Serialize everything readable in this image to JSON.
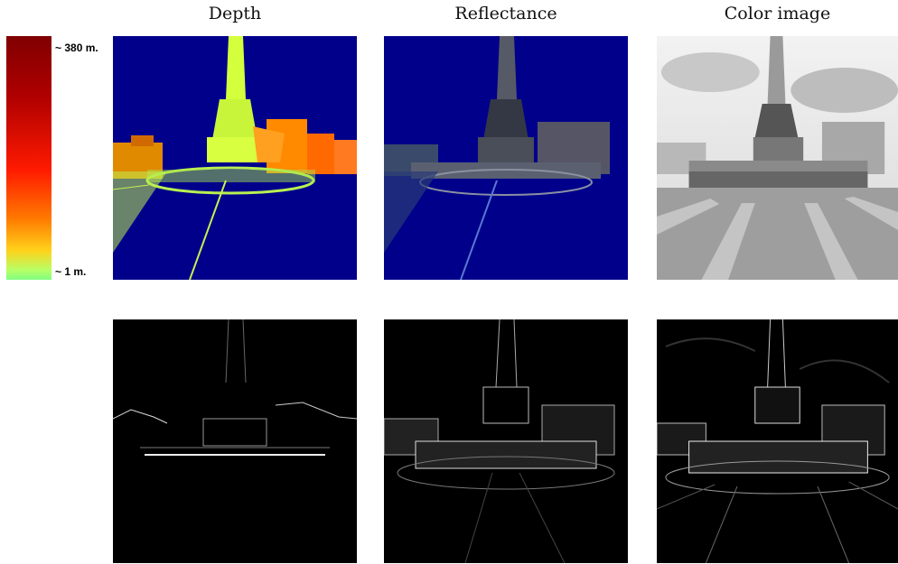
{
  "columns": [
    "Depth",
    "Reflectance",
    "Color image"
  ],
  "colorbar": {
    "max_label": "~ 380 m.",
    "min_label": "~ 1 m."
  },
  "colors": {
    "depth_background": "#00008b",
    "depth_near": "#d4ff3c",
    "depth_far": "#ff7a00",
    "reflectance_background": "#00008b",
    "edge_background": "#000000"
  }
}
